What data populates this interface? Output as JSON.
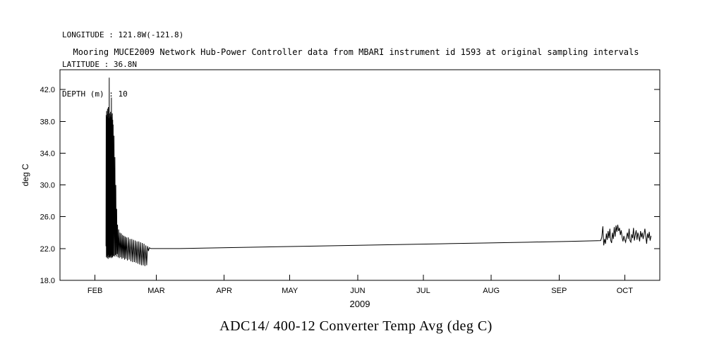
{
  "header": {
    "longitude": "LONGITUDE : 121.8W(-121.8)",
    "latitude": "LATITUDE : 36.8N",
    "depth": "DEPTH (m) : 10"
  },
  "title": "Mooring MUCE2009 Network Hub-Power Controller data from MBARI instrument id 1593 at original sampling intervals",
  "caption": "ADC14/ 400-12 Converter Temp Avg (deg C)",
  "chart_data": {
    "type": "line",
    "title": "Mooring MUCE2009 Network Hub-Power Controller data from MBARI instrument id 1593 at original sampling intervals",
    "ylabel": "deg C",
    "xlabel": "2009",
    "ylim": [
      18,
      44.5
    ],
    "x_domain_days": [
      16,
      290
    ],
    "y_ticks": [
      18,
      22,
      26,
      30,
      34,
      38,
      42
    ],
    "y_tick_labels": [
      "18.0",
      "22.0",
      "26.0",
      "30.0",
      "34.0",
      "38.0",
      "42.0"
    ],
    "x_ticks_days": [
      32,
      60,
      91,
      121,
      152,
      182,
      213,
      244,
      274
    ],
    "x_tick_labels": [
      "FEB",
      "MAR",
      "APR",
      "MAY",
      "JUN",
      "JUL",
      "AUG",
      "SEP",
      "OCT"
    ],
    "grid": false,
    "legend": "none",
    "line_color": "#000000",
    "background": "#ffffff",
    "series": [
      {
        "name": "ADC14/ 400-12 Converter Temp Avg (deg C)",
        "points": [
          [
            37.0,
            22.3
          ],
          [
            37.1,
            38.8
          ],
          [
            37.2,
            20.9
          ],
          [
            37.3,
            39.3
          ],
          [
            37.4,
            21.1
          ],
          [
            37.5,
            38.6
          ],
          [
            37.6,
            20.8
          ],
          [
            37.7,
            39.6
          ],
          [
            37.8,
            21.0
          ],
          [
            37.9,
            38.9
          ],
          [
            38.0,
            20.7
          ],
          [
            38.1,
            39.8
          ],
          [
            38.2,
            21.2
          ],
          [
            38.3,
            38.4
          ],
          [
            38.4,
            20.9
          ],
          [
            38.5,
            43.5
          ],
          [
            38.6,
            21.0
          ],
          [
            38.7,
            39.0
          ],
          [
            38.8,
            20.8
          ],
          [
            38.9,
            38.6
          ],
          [
            39.0,
            21.1
          ],
          [
            39.1,
            39.2
          ],
          [
            39.2,
            20.9
          ],
          [
            39.3,
            38.8
          ],
          [
            39.4,
            21.0
          ],
          [
            39.5,
            41.0
          ],
          [
            39.6,
            20.8
          ],
          [
            39.7,
            38.5
          ],
          [
            39.8,
            21.2
          ],
          [
            39.9,
            39.0
          ],
          [
            40.0,
            20.9
          ],
          [
            40.1,
            38.2
          ],
          [
            40.2,
            21.0
          ],
          [
            40.3,
            37.6
          ],
          [
            40.5,
            21.1
          ],
          [
            40.7,
            36.2
          ],
          [
            40.9,
            21.0
          ],
          [
            41.1,
            33.5
          ],
          [
            41.3,
            21.2
          ],
          [
            41.5,
            30.0
          ],
          [
            41.7,
            21.0
          ],
          [
            41.9,
            27.0
          ],
          [
            42.1,
            21.3
          ],
          [
            42.3,
            25.0
          ],
          [
            42.5,
            20.9
          ],
          [
            42.8,
            24.4
          ],
          [
            43.1,
            20.8
          ],
          [
            43.4,
            24.0
          ],
          [
            43.7,
            20.9
          ],
          [
            44.0,
            23.9
          ],
          [
            44.3,
            20.7
          ],
          [
            44.6,
            23.7
          ],
          [
            44.9,
            20.8
          ],
          [
            45.2,
            23.6
          ],
          [
            45.5,
            20.6
          ],
          [
            45.8,
            23.5
          ],
          [
            46.1,
            20.7
          ],
          [
            46.4,
            23.4
          ],
          [
            46.8,
            20.5
          ],
          [
            47.2,
            23.4
          ],
          [
            47.6,
            20.6
          ],
          [
            48.0,
            23.2
          ],
          [
            48.4,
            20.4
          ],
          [
            48.8,
            23.2
          ],
          [
            49.2,
            20.3
          ],
          [
            49.6,
            23.1
          ],
          [
            50.0,
            20.3
          ],
          [
            50.4,
            23.0
          ],
          [
            50.8,
            20.2
          ],
          [
            51.2,
            22.9
          ],
          [
            51.6,
            20.1
          ],
          [
            52.0,
            22.9
          ],
          [
            52.4,
            20.0
          ],
          [
            52.8,
            22.8
          ],
          [
            53.2,
            19.9
          ],
          [
            53.6,
            22.7
          ],
          [
            54.0,
            19.9
          ],
          [
            54.4,
            22.6
          ],
          [
            54.8,
            19.8
          ],
          [
            55.2,
            22.4
          ],
          [
            55.6,
            19.9
          ],
          [
            56.0,
            22.3
          ],
          [
            56.4,
            21.7
          ],
          [
            56.8,
            22.1
          ],
          [
            57.5,
            22.0
          ],
          [
            70,
            22.0
          ],
          [
            90,
            22.1
          ],
          [
            110,
            22.2
          ],
          [
            130,
            22.3
          ],
          [
            150,
            22.4
          ],
          [
            170,
            22.5
          ],
          [
            190,
            22.6
          ],
          [
            210,
            22.7
          ],
          [
            230,
            22.8
          ],
          [
            248,
            22.9
          ],
          [
            263,
            23.0
          ],
          [
            263.5,
            23.4
          ],
          [
            264.0,
            24.8
          ],
          [
            264.4,
            22.4
          ],
          [
            264.8,
            23.2
          ],
          [
            265.2,
            22.6
          ],
          [
            265.6,
            23.9
          ],
          [
            266.0,
            23.1
          ],
          [
            266.4,
            24.2
          ],
          [
            266.8,
            23.3
          ],
          [
            267.2,
            24.5
          ],
          [
            267.6,
            23.0
          ],
          [
            268.0,
            22.7
          ],
          [
            268.4,
            24.0
          ],
          [
            268.8,
            23.2
          ],
          [
            269.2,
            24.7
          ],
          [
            269.6,
            23.5
          ],
          [
            270.0,
            24.9
          ],
          [
            270.4,
            24.1
          ],
          [
            270.8,
            25.0
          ],
          [
            271.2,
            24.2
          ],
          [
            271.6,
            24.6
          ],
          [
            272.0,
            23.7
          ],
          [
            272.4,
            24.3
          ],
          [
            272.8,
            23.4
          ],
          [
            273.2,
            22.9
          ],
          [
            273.6,
            23.6
          ],
          [
            274.0,
            23.1
          ],
          [
            274.4,
            22.8
          ],
          [
            274.8,
            23.5
          ],
          [
            275.2,
            24.0
          ],
          [
            275.6,
            23.2
          ],
          [
            276.0,
            24.5
          ],
          [
            276.4,
            23.0
          ],
          [
            276.8,
            22.8
          ],
          [
            277.2,
            23.8
          ],
          [
            277.6,
            23.3
          ],
          [
            278.0,
            24.6
          ],
          [
            278.4,
            23.0
          ],
          [
            278.8,
            23.7
          ],
          [
            279.2,
            24.3
          ],
          [
            279.6,
            23.1
          ],
          [
            280.0,
            24.0
          ],
          [
            280.4,
            23.5
          ],
          [
            280.8,
            22.9
          ],
          [
            281.2,
            24.2
          ],
          [
            281.6,
            23.4
          ],
          [
            282.0,
            24.0
          ],
          [
            282.4,
            23.2
          ],
          [
            282.8,
            23.8
          ],
          [
            283.2,
            24.5
          ],
          [
            283.6,
            23.5
          ],
          [
            284.0,
            22.6
          ],
          [
            284.4,
            23.9
          ],
          [
            284.8,
            23.3
          ],
          [
            285.2,
            24.1
          ],
          [
            285.6,
            23.0
          ],
          [
            286.0,
            23.6
          ]
        ]
      }
    ]
  }
}
